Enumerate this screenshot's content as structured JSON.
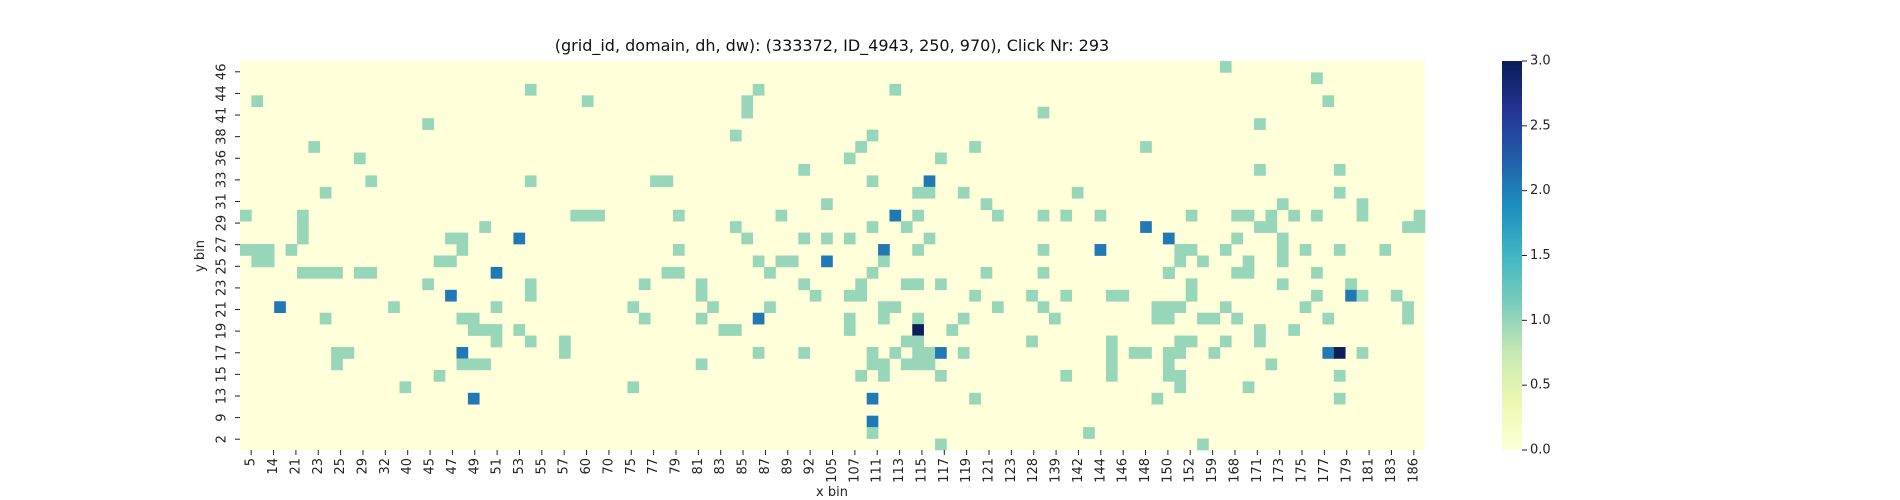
{
  "chart_data": {
    "type": "heatmap",
    "title": "(grid_id, domain, dh, dw): (333372, ID_4943, 250, 970), Click Nr: 293",
    "xlabel": "x bin",
    "ylabel": "y bin",
    "x_tick_labels": [
      "5",
      "14",
      "21",
      "23",
      "25",
      "29",
      "32",
      "40",
      "45",
      "47",
      "49",
      "51",
      "53",
      "55",
      "57",
      "60",
      "70",
      "75",
      "77",
      "79",
      "81",
      "83",
      "85",
      "87",
      "89",
      "92",
      "105",
      "107",
      "111",
      "113",
      "115",
      "117",
      "119",
      "121",
      "123",
      "128",
      "139",
      "142",
      "144",
      "146",
      "148",
      "150",
      "152",
      "159",
      "168",
      "171",
      "173",
      "175",
      "177",
      "179",
      "181",
      "183",
      "186"
    ],
    "y_tick_labels": [
      "46",
      "44",
      "41",
      "38",
      "36",
      "33",
      "31",
      "29",
      "27",
      "25",
      "23",
      "21",
      "19",
      "17",
      "15",
      "13",
      "9",
      "2"
    ],
    "colorbar": {
      "min": 0.0,
      "max": 3.0,
      "ticks": [
        "0.0",
        "0.5",
        "1.0",
        "1.5",
        "2.0",
        "2.5",
        "3.0"
      ]
    },
    "colors": {
      "c0": "#ffffd9",
      "c1": "#97d6b9",
      "c2": "#2079b4",
      "c3": "#0d1f5a"
    },
    "n_cols": 104,
    "n_rows": 34,
    "cells": [
      [
        0,
        86,
        1
      ],
      [
        1,
        94,
        1
      ],
      [
        2,
        25,
        1
      ],
      [
        2,
        45,
        1
      ],
      [
        2,
        57,
        1
      ],
      [
        3,
        1,
        1
      ],
      [
        3,
        30,
        1
      ],
      [
        3,
        44,
        1
      ],
      [
        3,
        95,
        1
      ],
      [
        4,
        44,
        1
      ],
      [
        4,
        70,
        1
      ],
      [
        5,
        16,
        1
      ],
      [
        5,
        89,
        1
      ],
      [
        6,
        43,
        1
      ],
      [
        6,
        55,
        1
      ],
      [
        7,
        6,
        1
      ],
      [
        7,
        54,
        1
      ],
      [
        7,
        64,
        1
      ],
      [
        7,
        79,
        1
      ],
      [
        8,
        10,
        1
      ],
      [
        8,
        61,
        1
      ],
      [
        8,
        53,
        1
      ],
      [
        9,
        49,
        1
      ],
      [
        10,
        11,
        1
      ],
      [
        10,
        25,
        1
      ],
      [
        10,
        36,
        1
      ],
      [
        10,
        37,
        1
      ],
      [
        10,
        55,
        1
      ],
      [
        10,
        60,
        2
      ],
      [
        11,
        7,
        1
      ],
      [
        11,
        59,
        1
      ],
      [
        11,
        63,
        1
      ],
      [
        11,
        73,
        1
      ],
      [
        11,
        96,
        1
      ],
      [
        11,
        60,
        1
      ],
      [
        12,
        65,
        1
      ],
      [
        12,
        51,
        1
      ],
      [
        13,
        0,
        1
      ],
      [
        13,
        5,
        1
      ],
      [
        13,
        29,
        1
      ],
      [
        13,
        38,
        1
      ],
      [
        13,
        30,
        1
      ],
      [
        13,
        31,
        1
      ],
      [
        13,
        47,
        1
      ],
      [
        13,
        57,
        2
      ],
      [
        13,
        59,
        1
      ],
      [
        13,
        66,
        1
      ],
      [
        13,
        70,
        1
      ],
      [
        13,
        83,
        1
      ],
      [
        13,
        87,
        1
      ],
      [
        13,
        88,
        1
      ],
      [
        13,
        90,
        1
      ],
      [
        13,
        92,
        1
      ],
      [
        13,
        94,
        1
      ],
      [
        13,
        98,
        1
      ],
      [
        13,
        103,
        1
      ],
      [
        13,
        72,
        1
      ],
      [
        13,
        75,
        1
      ],
      [
        14,
        5,
        1
      ],
      [
        14,
        21,
        1
      ],
      [
        14,
        43,
        1
      ],
      [
        14,
        55,
        1
      ],
      [
        14,
        58,
        1
      ],
      [
        14,
        79,
        2
      ],
      [
        14,
        89,
        1
      ],
      [
        14,
        90,
        1
      ],
      [
        14,
        102,
        1
      ],
      [
        14,
        103,
        1
      ],
      [
        15,
        5,
        1
      ],
      [
        15,
        18,
        1
      ],
      [
        15,
        19,
        1
      ],
      [
        15,
        24,
        2
      ],
      [
        15,
        60,
        1
      ],
      [
        15,
        81,
        2
      ],
      [
        15,
        87,
        1
      ],
      [
        15,
        91,
        1
      ],
      [
        15,
        44,
        1
      ],
      [
        15,
        49,
        1
      ],
      [
        15,
        51,
        1
      ],
      [
        15,
        53,
        1
      ],
      [
        16,
        0,
        1
      ],
      [
        16,
        1,
        1
      ],
      [
        16,
        2,
        1
      ],
      [
        16,
        4,
        1
      ],
      [
        16,
        19,
        1
      ],
      [
        16,
        56,
        2
      ],
      [
        16,
        75,
        1
      ],
      [
        16,
        82,
        1
      ],
      [
        16,
        83,
        1
      ],
      [
        16,
        86,
        1
      ],
      [
        16,
        38,
        1
      ],
      [
        16,
        59,
        1
      ],
      [
        16,
        70,
        1
      ],
      [
        16,
        75,
        2
      ],
      [
        16,
        91,
        1
      ],
      [
        16,
        93,
        1
      ],
      [
        16,
        96,
        1
      ],
      [
        16,
        100,
        1
      ],
      [
        17,
        1,
        1
      ],
      [
        17,
        2,
        1
      ],
      [
        17,
        17,
        1
      ],
      [
        17,
        18,
        1
      ],
      [
        17,
        45,
        1
      ],
      [
        17,
        51,
        2
      ],
      [
        17,
        56,
        1
      ],
      [
        17,
        48,
        1
      ],
      [
        17,
        47,
        1
      ],
      [
        17,
        82,
        1
      ],
      [
        17,
        84,
        1
      ],
      [
        17,
        88,
        1
      ],
      [
        17,
        91,
        1
      ],
      [
        18,
        5,
        1
      ],
      [
        18,
        6,
        1
      ],
      [
        18,
        7,
        1
      ],
      [
        18,
        8,
        1
      ],
      [
        18,
        10,
        1
      ],
      [
        18,
        11,
        1
      ],
      [
        18,
        22,
        2
      ],
      [
        18,
        37,
        1
      ],
      [
        18,
        38,
        1
      ],
      [
        18,
        46,
        1
      ],
      [
        18,
        55,
        1
      ],
      [
        18,
        65,
        1
      ],
      [
        18,
        70,
        1
      ],
      [
        18,
        81,
        2
      ],
      [
        18,
        87,
        1
      ],
      [
        18,
        88,
        1
      ],
      [
        18,
        94,
        1
      ],
      [
        18,
        81,
        1
      ],
      [
        19,
        16,
        1
      ],
      [
        19,
        25,
        1
      ],
      [
        19,
        35,
        1
      ],
      [
        19,
        40,
        1
      ],
      [
        19,
        49,
        1
      ],
      [
        19,
        54,
        1
      ],
      [
        19,
        58,
        1
      ],
      [
        19,
        59,
        1
      ],
      [
        19,
        61,
        1
      ],
      [
        19,
        83,
        1
      ],
      [
        19,
        91,
        1
      ],
      [
        19,
        97,
        1
      ],
      [
        20,
        18,
        2
      ],
      [
        20,
        25,
        1
      ],
      [
        20,
        40,
        1
      ],
      [
        20,
        50,
        1
      ],
      [
        20,
        53,
        1
      ],
      [
        20,
        54,
        1
      ],
      [
        20,
        64,
        1
      ],
      [
        20,
        69,
        1
      ],
      [
        20,
        72,
        1
      ],
      [
        20,
        76,
        1
      ],
      [
        20,
        77,
        1
      ],
      [
        20,
        83,
        1
      ],
      [
        20,
        94,
        1
      ],
      [
        20,
        97,
        2
      ],
      [
        20,
        101,
        1
      ],
      [
        20,
        98,
        1
      ],
      [
        21,
        3,
        2
      ],
      [
        21,
        13,
        1
      ],
      [
        21,
        22,
        1
      ],
      [
        21,
        34,
        1
      ],
      [
        21,
        41,
        1
      ],
      [
        21,
        46,
        1
      ],
      [
        21,
        56,
        1
      ],
      [
        21,
        57,
        1
      ],
      [
        21,
        66,
        1
      ],
      [
        21,
        70,
        1
      ],
      [
        21,
        80,
        1
      ],
      [
        21,
        81,
        1
      ],
      [
        21,
        82,
        1
      ],
      [
        21,
        86,
        1
      ],
      [
        21,
        102,
        1
      ],
      [
        21,
        93,
        1
      ],
      [
        22,
        7,
        1
      ],
      [
        22,
        19,
        1
      ],
      [
        22,
        20,
        1
      ],
      [
        22,
        35,
        1
      ],
      [
        22,
        40,
        1
      ],
      [
        22,
        45,
        2
      ],
      [
        22,
        53,
        1
      ],
      [
        22,
        56,
        1
      ],
      [
        22,
        59,
        1
      ],
      [
        22,
        63,
        1
      ],
      [
        22,
        71,
        1
      ],
      [
        22,
        80,
        1
      ],
      [
        22,
        81,
        1
      ],
      [
        22,
        84,
        1
      ],
      [
        22,
        85,
        1
      ],
      [
        22,
        87,
        1
      ],
      [
        22,
        95,
        1
      ],
      [
        22,
        102,
        1
      ],
      [
        23,
        20,
        1
      ],
      [
        23,
        21,
        1
      ],
      [
        23,
        22,
        1
      ],
      [
        23,
        24,
        1
      ],
      [
        23,
        42,
        1
      ],
      [
        23,
        43,
        1
      ],
      [
        23,
        53,
        1
      ],
      [
        23,
        62,
        1
      ],
      [
        23,
        59,
        3
      ],
      [
        23,
        89,
        1
      ],
      [
        23,
        92,
        1
      ],
      [
        24,
        22,
        1
      ],
      [
        24,
        25,
        1
      ],
      [
        24,
        28,
        1
      ],
      [
        24,
        58,
        1
      ],
      [
        24,
        59,
        1
      ],
      [
        24,
        69,
        1
      ],
      [
        24,
        76,
        1
      ],
      [
        24,
        82,
        1
      ],
      [
        24,
        83,
        1
      ],
      [
        24,
        86,
        1
      ],
      [
        24,
        89,
        1
      ],
      [
        25,
        8,
        1
      ],
      [
        25,
        9,
        1
      ],
      [
        25,
        19,
        2
      ],
      [
        25,
        28,
        1
      ],
      [
        25,
        45,
        1
      ],
      [
        25,
        49,
        1
      ],
      [
        25,
        55,
        1
      ],
      [
        25,
        57,
        1
      ],
      [
        25,
        59,
        1
      ],
      [
        25,
        60,
        1
      ],
      [
        25,
        61,
        2
      ],
      [
        25,
        63,
        1
      ],
      [
        25,
        76,
        1
      ],
      [
        25,
        78,
        1
      ],
      [
        25,
        79,
        1
      ],
      [
        25,
        81,
        1
      ],
      [
        25,
        82,
        1
      ],
      [
        25,
        85,
        1
      ],
      [
        25,
        95,
        2
      ],
      [
        25,
        96,
        3
      ],
      [
        25,
        98,
        1
      ],
      [
        26,
        8,
        1
      ],
      [
        26,
        19,
        1
      ],
      [
        26,
        20,
        1
      ],
      [
        26,
        21,
        1
      ],
      [
        26,
        40,
        1
      ],
      [
        26,
        55,
        1
      ],
      [
        26,
        56,
        1
      ],
      [
        26,
        58,
        1
      ],
      [
        26,
        59,
        1
      ],
      [
        26,
        60,
        1
      ],
      [
        26,
        76,
        1
      ],
      [
        26,
        81,
        1
      ],
      [
        26,
        90,
        1
      ],
      [
        27,
        17,
        1
      ],
      [
        27,
        54,
        1
      ],
      [
        27,
        56,
        1
      ],
      [
        27,
        61,
        1
      ],
      [
        27,
        72,
        1
      ],
      [
        27,
        76,
        1
      ],
      [
        27,
        81,
        1
      ],
      [
        27,
        82,
        1
      ],
      [
        27,
        96,
        1
      ],
      [
        28,
        14,
        1
      ],
      [
        28,
        34,
        1
      ],
      [
        28,
        82,
        1
      ],
      [
        28,
        88,
        1
      ],
      [
        29,
        20,
        2
      ],
      [
        29,
        55,
        2
      ],
      [
        29,
        64,
        1
      ],
      [
        29,
        80,
        1
      ],
      [
        29,
        96,
        1
      ],
      [
        31,
        55,
        2
      ],
      [
        33,
        84,
        1
      ],
      [
        33,
        61,
        1
      ],
      [
        32,
        55,
        1
      ],
      [
        32,
        74,
        1
      ],
      [
        12,
        91,
        1
      ],
      [
        12,
        98,
        1
      ],
      [
        9,
        89,
        1
      ],
      [
        9,
        96,
        1
      ]
    ]
  }
}
